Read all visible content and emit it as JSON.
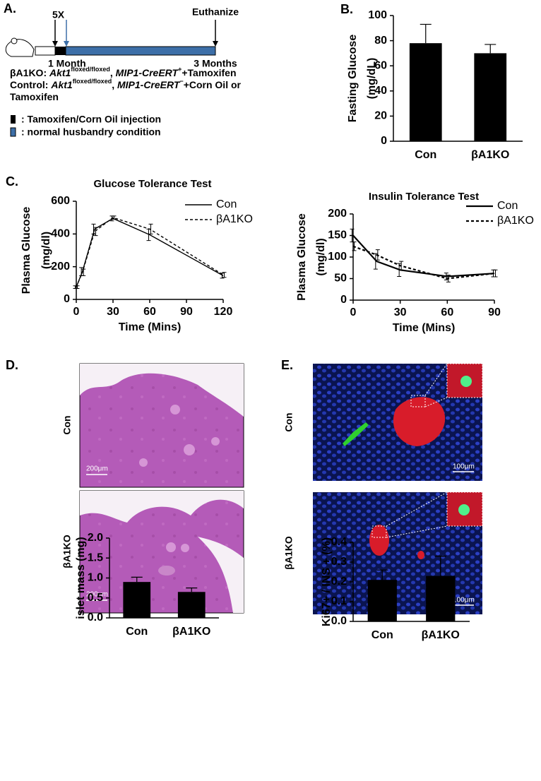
{
  "panels": {
    "a": "A.",
    "b": "B.",
    "c": "C.",
    "d": "D.",
    "e": "E."
  },
  "timeline": {
    "dose": "5X",
    "end": "Euthanize",
    "start_label": "1 Month",
    "end_label": "3 Months",
    "genotypes": [
      [
        {
          "text": "βA1KO: "
        },
        {
          "text": "Akt1",
          "style": "italic"
        },
        {
          "text": "floxed/floxed",
          "style": "sup"
        },
        {
          "text": ", "
        },
        {
          "text": "MIP1-CreERT",
          "style": "italic"
        },
        {
          "text": "+",
          "style": "sup"
        },
        {
          "text": "+Tamoxifen"
        }
      ],
      [
        {
          "text": "Control: "
        },
        {
          "text": "Akt1",
          "style": "italic"
        },
        {
          "text": "floxed/floxed",
          "style": "sup"
        },
        {
          "text": ", "
        },
        {
          "text": "MIP1-CreERT",
          "style": "italic"
        },
        {
          "text": "−",
          "style": "sup"
        },
        {
          "text": "+Corn Oil or"
        }
      ],
      [
        {
          "text": "Tamoxifen"
        }
      ]
    ],
    "legend": [
      ": Tamoxifen/Corn Oil injection",
      ": normal husbandry condition"
    ]
  },
  "histology": {
    "rows": [
      "Con",
      "βA1KO"
    ],
    "scale": "200μm"
  },
  "immunofluorescence": {
    "rows": [
      "Con",
      "βA1KO"
    ],
    "scale": "100μm"
  },
  "chart_data": [
    {
      "type": "bar",
      "y_label": [
        "Fasting Glucose",
        "(mg/dL)"
      ],
      "categories": [
        "Con",
        "βA1KO"
      ],
      "values": [
        78,
        70
      ],
      "errors": [
        15,
        7
      ],
      "color": "#000000",
      "ylim": [
        0,
        100
      ],
      "yticks": [
        0,
        20,
        40,
        60,
        80,
        100
      ]
    },
    {
      "type": "line",
      "title": "Glucose Tolerance Test",
      "y_label": [
        "Plasma Glucose",
        "(mg/dl)"
      ],
      "x_label": "Time (Mins)",
      "x": [
        0,
        5,
        15,
        30,
        60,
        120
      ],
      "series": [
        {
          "name": "Con",
          "color": "#000000",
          "dash": false,
          "values": [
            75,
            170,
            430,
            495,
            395,
            145
          ],
          "errors": [
            8,
            25,
            30,
            15,
            35,
            15
          ]
        },
        {
          "name": "βA1KO",
          "color": "#000000",
          "dash": true,
          "values": [
            75,
            165,
            415,
            500,
            430,
            150
          ],
          "errors": [
            8,
            20,
            25,
            10,
            30,
            15
          ]
        }
      ],
      "xlim": [
        0,
        120
      ],
      "xticks": [
        0,
        30,
        60,
        90,
        120
      ],
      "ylim": [
        0,
        600
      ],
      "yticks": [
        0,
        200,
        400,
        600
      ],
      "legend": "upper right"
    },
    {
      "type": "line",
      "title": "Insulin Tolerance Test",
      "y_label": [
        "Plasma Glucose",
        "(mg/dl)"
      ],
      "x_label": "Time (Mins)",
      "x": [
        0,
        15,
        30,
        60,
        90
      ],
      "series": [
        {
          "name": "Con",
          "color": "#000000",
          "dash": false,
          "values": [
            150,
            90,
            70,
            55,
            62
          ],
          "errors": [
            15,
            18,
            15,
            8,
            8
          ]
        },
        {
          "name": "βA1KO",
          "color": "#000000",
          "dash": true,
          "values": [
            125,
            105,
            80,
            50,
            62
          ],
          "errors": [
            10,
            12,
            10,
            8,
            8
          ]
        }
      ],
      "xlim": [
        0,
        90
      ],
      "xticks": [
        0,
        30,
        60,
        90
      ],
      "ylim": [
        0,
        200
      ],
      "yticks": [
        0,
        50,
        100,
        150,
        200
      ],
      "legend": "upper right"
    },
    {
      "type": "bar",
      "y_label": [
        "islet mass (mg)"
      ],
      "categories": [
        "Con",
        "βA1KO"
      ],
      "values": [
        0.9,
        0.65
      ],
      "errors": [
        0.12,
        0.1
      ],
      "color": "#000000",
      "ylim": [
        0,
        2
      ],
      "yticks": [
        {
          "value": 0,
          "label": "0.0"
        },
        0.5,
        {
          "value": 1,
          "label": "1.0"
        },
        1.5,
        {
          "value": 2,
          "label": "2.0"
        }
      ]
    },
    {
      "type": "bar",
      "y_label": [
        "Ki67+ / INS + (%)"
      ],
      "categories": [
        "Con",
        "βA1KO"
      ],
      "values": [
        0.21,
        0.23
      ],
      "errors": [
        0.05,
        0.1
      ],
      "color": "#000000",
      "ylim": [
        0,
        0.4
      ],
      "yticks": [
        {
          "value": 0,
          "label": "0.0"
        },
        0.1,
        0.2,
        0.3,
        0.4
      ]
    }
  ]
}
